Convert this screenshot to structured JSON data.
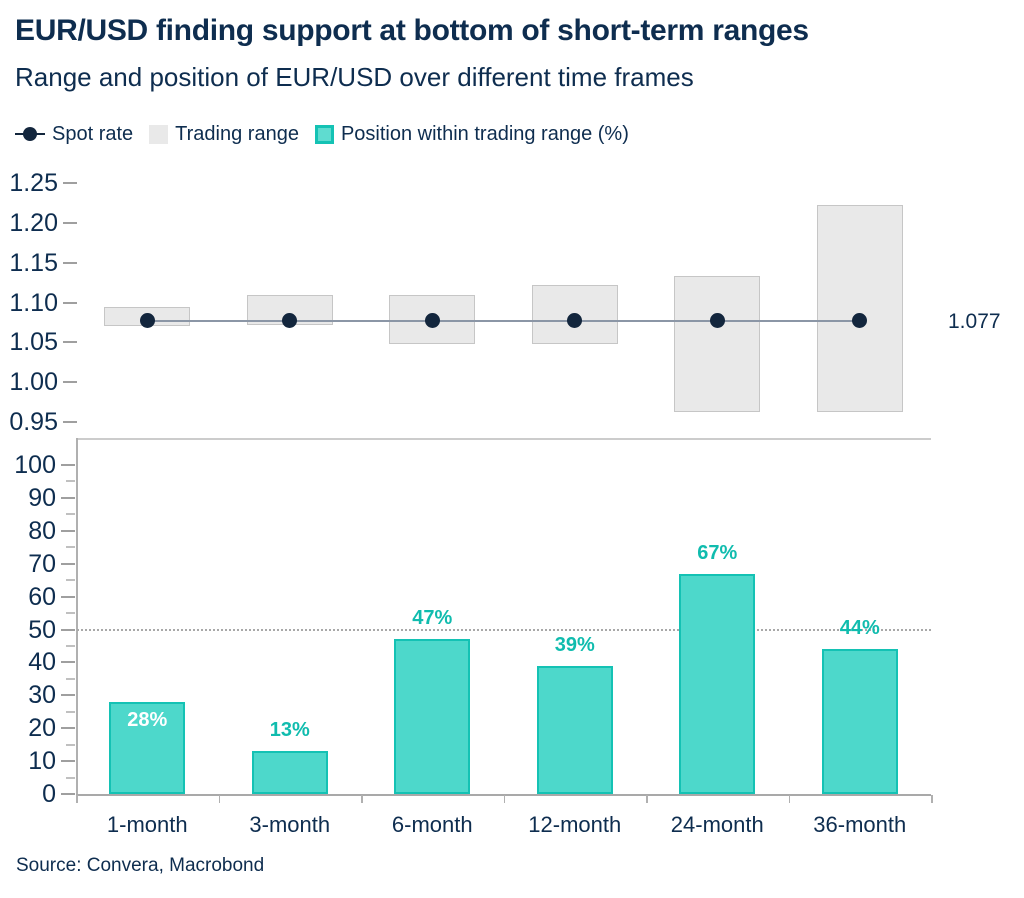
{
  "header": {
    "title": "EUR/USD finding support at bottom of short-term ranges",
    "subtitle": "Range and position of EUR/USD over different time frames"
  },
  "legend": {
    "items": [
      {
        "label": "Spot rate",
        "marker": "line-dot-icon"
      },
      {
        "label": "Trading range",
        "marker": "grey-square-icon"
      },
      {
        "label": "Position within trading range (%)",
        "marker": "teal-square-icon"
      }
    ]
  },
  "source": "Source: Convera, Macrobond",
  "colors": {
    "navy_text": "#0e2d4f",
    "dot": "#13263d",
    "spot_line": "#8b96a6",
    "range_fill": "#e9e9e9",
    "range_border": "#c6c6c6",
    "teal_fill": "#4dd8cb",
    "teal_border": "#14c2b4",
    "teal_text": "#10bcae",
    "axis": "#b0b0b0"
  },
  "chart_data": [
    {
      "type": "range-dot",
      "panel": "top",
      "categories": [
        "1-month",
        "3-month",
        "6-month",
        "12-month",
        "24-month",
        "36-month"
      ],
      "series": [
        {
          "name": "Trading range",
          "type": "range",
          "low": [
            1.07,
            1.072,
            1.048,
            1.048,
            0.963,
            0.963
          ],
          "high": [
            1.094,
            1.109,
            1.11,
            1.122,
            1.133,
            1.223
          ]
        },
        {
          "name": "Spot rate",
          "type": "line",
          "values": [
            1.077,
            1.077,
            1.077,
            1.077,
            1.077,
            1.077
          ]
        }
      ],
      "annotation": {
        "text": "1.077",
        "value": 1.077
      },
      "ylim": [
        0.95,
        1.25
      ],
      "yticks": [
        "1.25",
        "1.20",
        "1.15",
        "1.10",
        "1.05",
        "1.00",
        "0.95"
      ],
      "grid": false,
      "legend_position": "top"
    },
    {
      "type": "bar",
      "panel": "bottom",
      "name": "Position within trading range (%)",
      "categories": [
        "1-month",
        "3-month",
        "6-month",
        "12-month",
        "24-month",
        "36-month"
      ],
      "values": [
        28,
        13,
        47,
        39,
        67,
        44
      ],
      "labels": [
        "28%",
        "13%",
        "47%",
        "39%",
        "67%",
        "44%"
      ],
      "label_inside": [
        true,
        false,
        false,
        false,
        false,
        false
      ],
      "ylim": [
        0,
        100
      ],
      "ytick_step": 10,
      "minor_tick_step": 5,
      "reference_line": 50,
      "grid": false
    }
  ]
}
